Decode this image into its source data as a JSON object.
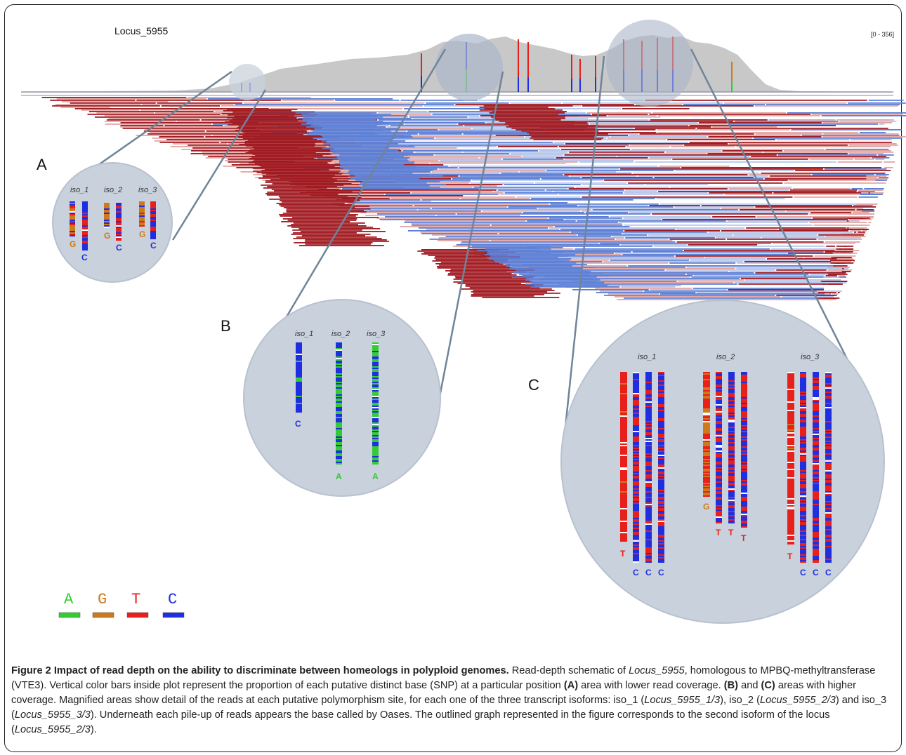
{
  "figure": {
    "locus_title": "Locus_5955",
    "range_label": "[0 - 356]",
    "panels": {
      "A": {
        "letter": "A",
        "isoforms": [
          "iso_1",
          "iso_2",
          "iso_3"
        ],
        "calls": [
          "G",
          "C",
          "G",
          "C",
          "G",
          "C"
        ]
      },
      "B": {
        "letter": "B",
        "isoforms": [
          "iso_1",
          "iso_2",
          "iso_3"
        ],
        "calls": [
          "C",
          "A",
          "A"
        ]
      },
      "C": {
        "letter": "C",
        "isoforms": [
          "iso_1",
          "iso_2",
          "iso_3"
        ],
        "calls": [
          "T",
          "C",
          "C",
          "C",
          "G",
          "T",
          "T",
          "T",
          "T",
          "C",
          "C",
          "C"
        ]
      }
    },
    "legend": [
      {
        "letter": "A",
        "color": "#33cc33"
      },
      {
        "letter": "G",
        "color": "#cc7a1a"
      },
      {
        "letter": "T",
        "color": "#e8201c"
      },
      {
        "letter": "C",
        "color": "#1f2fe0"
      }
    ],
    "colors": {
      "coverage": "#c8c8c8",
      "forward_dark": "#a11c22",
      "forward_light": "#e3a6a4",
      "reverse_dark": "#5b7fd6",
      "reverse_light": "#b7c6ea",
      "circle": "#c9d1dc"
    }
  },
  "caption": {
    "title": "Figure 2 Impact of read depth on the ability to discriminate between homeologs in polyploid genomes.",
    "s1": " Read-depth schematic of ",
    "locus": "Locus_5955",
    "s2": ", homologous to MPBQ-methyltransferase (VTE3). Vertical color bars inside plot represent the proportion of each putative distinct base (SNP) at a particular position ",
    "a": "(A)",
    "s3": " area with lower read coverage. ",
    "b": "(B)",
    "s4": " and ",
    "c": "(C)",
    "s5": " areas with higher coverage. Magnified areas show detail of the reads at each putative polymorphism site, for each one of the three transcript isoforms: iso_1 (",
    "iso1": "Locus_5955_1/3",
    "s6": "), iso_2 (",
    "iso2": "Locus_5955_2/3",
    "s7": ") and iso_3 (",
    "iso3": "Locus_5955_3/3",
    "s8": "). Underneath each pile-up of reads appears the base called by Oases. The outlined graph represented in the figure corresponds to the second isoform of the locus (",
    "iso2b": "Locus_5955_2/3",
    "s9": ")."
  }
}
